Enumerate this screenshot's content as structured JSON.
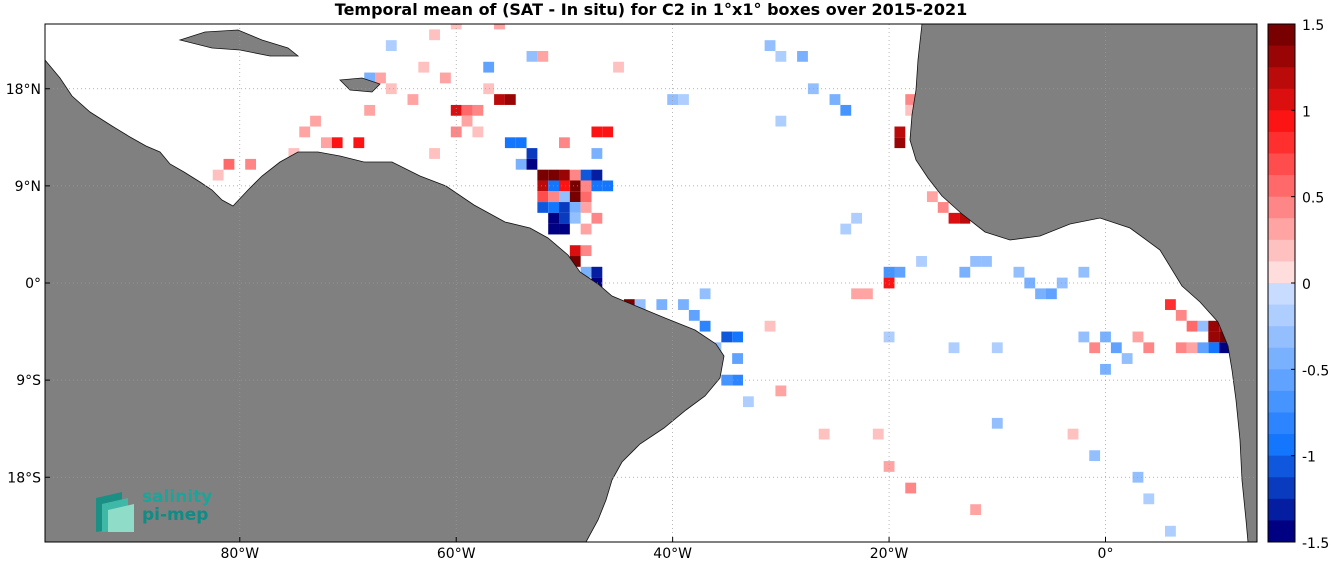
{
  "title": "Temporal mean of (SAT - In situ) for C2 in 1°x1° boxes over 2015-2021",
  "map": {
    "lon_range": [
      -98,
      14
    ],
    "lat_range": [
      -24,
      24
    ],
    "x_ticks": [
      {
        "value": -80,
        "label": "80°W"
      },
      {
        "value": -60,
        "label": "60°W"
      },
      {
        "value": -40,
        "label": "40°W"
      },
      {
        "value": -20,
        "label": "20°W"
      },
      {
        "value": 0,
        "label": "0°"
      }
    ],
    "y_ticks": [
      {
        "value": 18,
        "label": "18°N"
      },
      {
        "value": 9,
        "label": "9°N"
      },
      {
        "value": 0,
        "label": "0°"
      },
      {
        "value": -9,
        "label": "9°S"
      },
      {
        "value": -18,
        "label": "18°S"
      }
    ],
    "grid": "dotted",
    "land_color": "#808080",
    "ocean_color": "#ffffff"
  },
  "colorbar": {
    "min": -1.5,
    "max": 1.5,
    "ticks": [
      {
        "value": 1.5,
        "label": "1.5"
      },
      {
        "value": 1,
        "label": "1"
      },
      {
        "value": 0.5,
        "label": "0.5"
      },
      {
        "value": 0,
        "label": "0"
      },
      {
        "value": -0.5,
        "label": "-0.5"
      },
      {
        "value": -1,
        "label": "-1"
      },
      {
        "value": -1.5,
        "label": "-1.5"
      }
    ],
    "steps": 24,
    "colormap": "blue-white-red"
  },
  "logo": {
    "line1": "salinity",
    "line2": "pi-mep"
  },
  "chart_data": {
    "type": "heatmap",
    "title": "Temporal mean of (SAT - In situ) for C2 in 1°x1° boxes over 2015-2021",
    "box_size_deg": 1,
    "cells": [
      {
        "lon": -60,
        "lat": 16,
        "v": 1.1
      },
      {
        "lon": -59,
        "lat": 16,
        "v": 0.6
      },
      {
        "lon": -58,
        "lat": 16,
        "v": 0.4
      },
      {
        "lon": -59,
        "lat": 15,
        "v": 0.3
      },
      {
        "lon": -60,
        "lat": 14,
        "v": 0.4
      },
      {
        "lon": -58,
        "lat": 14,
        "v": 0.2
      },
      {
        "lon": -56,
        "lat": 17,
        "v": 1.2
      },
      {
        "lon": -55,
        "lat": 17,
        "v": 1.3
      },
      {
        "lon": -57,
        "lat": 18,
        "v": 0.2
      },
      {
        "lon": -57,
        "lat": 20,
        "v": -0.6
      },
      {
        "lon": -71,
        "lat": 13,
        "v": 1.0
      },
      {
        "lon": -69,
        "lat": 13,
        "v": 1.0
      },
      {
        "lon": -72,
        "lat": 13,
        "v": 0.3
      },
      {
        "lon": -73,
        "lat": 15,
        "v": 0.3
      },
      {
        "lon": -81,
        "lat": 11,
        "v": 0.6
      },
      {
        "lon": -79,
        "lat": 11,
        "v": 0.4
      },
      {
        "lon": -82,
        "lat": 10,
        "v": 0.2
      },
      {
        "lon": -68,
        "lat": 16,
        "v": 0.3
      },
      {
        "lon": -66,
        "lat": 18,
        "v": 0.2
      },
      {
        "lon": -67,
        "lat": 19,
        "v": 0.3
      },
      {
        "lon": -68,
        "lat": 19,
        "v": -0.5
      },
      {
        "lon": -55,
        "lat": 13,
        "v": -0.9
      },
      {
        "lon": -54,
        "lat": 13,
        "v": -1.0
      },
      {
        "lon": -53,
        "lat": 12,
        "v": -1.2
      },
      {
        "lon": -54,
        "lat": 11,
        "v": -0.4
      },
      {
        "lon": -53,
        "lat": 11,
        "v": -1.4
      },
      {
        "lon": -52,
        "lat": 10,
        "v": 1.5
      },
      {
        "lon": -51,
        "lat": 10,
        "v": 1.4
      },
      {
        "lon": -50,
        "lat": 10,
        "v": 1.3
      },
      {
        "lon": -49,
        "lat": 10,
        "v": 0.4
      },
      {
        "lon": -48,
        "lat": 10,
        "v": -1.1
      },
      {
        "lon": -47,
        "lat": 10,
        "v": -1.3
      },
      {
        "lon": -52,
        "lat": 9,
        "v": 1.2
      },
      {
        "lon": -51,
        "lat": 9,
        "v": -0.9
      },
      {
        "lon": -50,
        "lat": 9,
        "v": 0.9
      },
      {
        "lon": -49,
        "lat": 9,
        "v": 1.5
      },
      {
        "lon": -48,
        "lat": 9,
        "v": 0.5
      },
      {
        "lon": -47,
        "lat": 9,
        "v": -0.9
      },
      {
        "lon": -46,
        "lat": 9,
        "v": -1.0
      },
      {
        "lon": -52,
        "lat": 8,
        "v": 0.7
      },
      {
        "lon": -51,
        "lat": 8,
        "v": 0.5
      },
      {
        "lon": -50,
        "lat": 8,
        "v": -0.3
      },
      {
        "lon": -49,
        "lat": 8,
        "v": 1.5
      },
      {
        "lon": -48,
        "lat": 8,
        "v": 0.6
      },
      {
        "lon": -52,
        "lat": 7,
        "v": -1.1
      },
      {
        "lon": -51,
        "lat": 7,
        "v": -1.0
      },
      {
        "lon": -50,
        "lat": 7,
        "v": -1.2
      },
      {
        "lon": -49,
        "lat": 7,
        "v": -0.4
      },
      {
        "lon": -48,
        "lat": 7,
        "v": 0.3
      },
      {
        "lon": -51,
        "lat": 6,
        "v": -1.4
      },
      {
        "lon": -50,
        "lat": 6,
        "v": -1.2
      },
      {
        "lon": -49,
        "lat": 6,
        "v": -0.3
      },
      {
        "lon": -47,
        "lat": 6,
        "v": 0.4
      },
      {
        "lon": -51,
        "lat": 5,
        "v": -1.5
      },
      {
        "lon": -50,
        "lat": 5,
        "v": -1.4
      },
      {
        "lon": -48,
        "lat": 5,
        "v": 0.3
      },
      {
        "lon": -49,
        "lat": 3,
        "v": 1.1
      },
      {
        "lon": -48,
        "lat": 3,
        "v": 0.4
      },
      {
        "lon": -49,
        "lat": 2,
        "v": 1.5
      },
      {
        "lon": -48,
        "lat": 1,
        "v": -0.5
      },
      {
        "lon": -47,
        "lat": 1,
        "v": -1.3
      },
      {
        "lon": -47,
        "lat": 0,
        "v": -1.4
      },
      {
        "lon": -46,
        "lat": 14,
        "v": 1.0
      },
      {
        "lon": -47,
        "lat": 14,
        "v": 0.9
      },
      {
        "lon": -50,
        "lat": 13,
        "v": 0.5
      },
      {
        "lon": -47,
        "lat": 12,
        "v": -0.4
      },
      {
        "lon": -44,
        "lat": -2,
        "v": 1.5
      },
      {
        "lon": -43,
        "lat": -2,
        "v": -0.3
      },
      {
        "lon": -41,
        "lat": -2,
        "v": -0.4
      },
      {
        "lon": -38,
        "lat": -3,
        "v": -0.6
      },
      {
        "lon": -37,
        "lat": -4,
        "v": -0.8
      },
      {
        "lon": -35,
        "lat": -5,
        "v": -1.1
      },
      {
        "lon": -34,
        "lat": -5,
        "v": -0.9
      },
      {
        "lon": -34,
        "lat": -7,
        "v": -0.6
      },
      {
        "lon": -35,
        "lat": -9,
        "v": -0.7
      },
      {
        "lon": -34,
        "lat": -9,
        "v": -0.8
      },
      {
        "lon": -31,
        "lat": -4,
        "v": 0.2
      },
      {
        "lon": -19,
        "lat": 14,
        "v": 1.2
      },
      {
        "lon": -19,
        "lat": 13,
        "v": 1.3
      },
      {
        "lon": -18,
        "lat": 17,
        "v": 0.4
      },
      {
        "lon": -17,
        "lat": 17,
        "v": 0.3
      },
      {
        "lon": -18,
        "lat": 16,
        "v": 0.2
      },
      {
        "lon": -14,
        "lat": 6,
        "v": 1.1
      },
      {
        "lon": -13,
        "lat": 6,
        "v": 1.2
      },
      {
        "lon": -15,
        "lat": 7,
        "v": 0.5
      },
      {
        "lon": -16,
        "lat": 8,
        "v": 0.3
      },
      {
        "lon": -20,
        "lat": 1,
        "v": -0.7
      },
      {
        "lon": -19,
        "lat": 1,
        "v": -0.6
      },
      {
        "lon": -20,
        "lat": 0,
        "v": 0.9
      },
      {
        "lon": -23,
        "lat": -1,
        "v": 0.3
      },
      {
        "lon": -22,
        "lat": -1,
        "v": 0.3
      },
      {
        "lon": -24,
        "lat": 16,
        "v": -0.7
      },
      {
        "lon": -25,
        "lat": 17,
        "v": -0.4
      },
      {
        "lon": -27,
        "lat": 18,
        "v": -0.3
      },
      {
        "lon": -11,
        "lat": 2,
        "v": -0.3
      },
      {
        "lon": -12,
        "lat": 2,
        "v": -0.3
      },
      {
        "lon": -13,
        "lat": 1,
        "v": -0.4
      },
      {
        "lon": -8,
        "lat": 1,
        "v": -0.3
      },
      {
        "lon": -7,
        "lat": 0,
        "v": -0.4
      },
      {
        "lon": -6,
        "lat": -1,
        "v": -0.4
      },
      {
        "lon": -5,
        "lat": -1,
        "v": -0.6
      },
      {
        "lon": -4,
        "lat": 0,
        "v": -0.3
      },
      {
        "lon": -2,
        "lat": 1,
        "v": -0.3
      },
      {
        "lon": 6,
        "lat": -2,
        "v": 0.8
      },
      {
        "lon": 7,
        "lat": -3,
        "v": 0.4
      },
      {
        "lon": 8,
        "lat": -4,
        "v": 0.6
      },
      {
        "lon": 9,
        "lat": -4,
        "v": -0.3
      },
      {
        "lon": 10,
        "lat": -4,
        "v": 1.3
      },
      {
        "lon": 11,
        "lat": -4,
        "v": 1.2
      },
      {
        "lon": 12,
        "lat": -5,
        "v": 1.1
      },
      {
        "lon": 10,
        "lat": -5,
        "v": 1.3
      },
      {
        "lon": 11,
        "lat": -5,
        "v": 1.4
      },
      {
        "lon": 11,
        "lat": -6,
        "v": -1.4
      },
      {
        "lon": 10,
        "lat": -6,
        "v": -0.9
      },
      {
        "lon": 9,
        "lat": -6,
        "v": -0.6
      },
      {
        "lon": 8,
        "lat": -6,
        "v": 0.3
      },
      {
        "lon": 7,
        "lat": -6,
        "v": 0.4
      },
      {
        "lon": 4,
        "lat": -6,
        "v": 0.5
      },
      {
        "lon": 3,
        "lat": -5,
        "v": 0.3
      },
      {
        "lon": 1,
        "lat": -6,
        "v": -0.6
      },
      {
        "lon": 0,
        "lat": -5,
        "v": -0.5
      },
      {
        "lon": -1,
        "lat": -6,
        "v": 0.4
      },
      {
        "lon": -2,
        "lat": -5,
        "v": -0.3
      },
      {
        "lon": 2,
        "lat": -7,
        "v": -0.3
      },
      {
        "lon": 0,
        "lat": -8,
        "v": -0.4
      },
      {
        "lon": -10,
        "lat": -6,
        "v": -0.2
      },
      {
        "lon": -14,
        "lat": -6,
        "v": -0.2
      },
      {
        "lon": -20,
        "lat": -5,
        "v": -0.2
      },
      {
        "lon": -10,
        "lat": -13,
        "v": -0.3
      },
      {
        "lon": -3,
        "lat": -14,
        "v": 0.2
      },
      {
        "lon": -1,
        "lat": -16,
        "v": -0.3
      },
      {
        "lon": 3,
        "lat": -18,
        "v": -0.3
      },
      {
        "lon": 4,
        "lat": -20,
        "v": -0.2
      },
      {
        "lon": 6,
        "lat": -23,
        "v": -0.2
      },
      {
        "lon": -20,
        "lat": -17,
        "v": 0.3
      },
      {
        "lon": -18,
        "lat": -19,
        "v": 0.4
      },
      {
        "lon": -12,
        "lat": -21,
        "v": 0.3
      },
      {
        "lon": -26,
        "lat": -14,
        "v": 0.2
      },
      {
        "lon": -21,
        "lat": -14,
        "v": 0.2
      },
      {
        "lon": -33,
        "lat": -11,
        "v": -0.2
      },
      {
        "lon": -30,
        "lat": -10,
        "v": 0.3
      },
      {
        "lon": -40,
        "lat": 17,
        "v": -0.3
      },
      {
        "lon": -39,
        "lat": 17,
        "v": -0.2
      },
      {
        "lon": -45,
        "lat": 20,
        "v": 0.2
      },
      {
        "lon": -53,
        "lat": 21,
        "v": -0.3
      },
      {
        "lon": -52,
        "lat": 21,
        "v": 0.3
      },
      {
        "lon": -62,
        "lat": 23,
        "v": 0.2
      },
      {
        "lon": -66,
        "lat": 22,
        "v": -0.2
      },
      {
        "lon": -56,
        "lat": 24,
        "v": 0.3
      },
      {
        "lon": -60,
        "lat": 24,
        "v": 0.2
      },
      {
        "lon": -31,
        "lat": 22,
        "v": -0.3
      },
      {
        "lon": -30,
        "lat": 21,
        "v": -0.2
      },
      {
        "lon": -28,
        "lat": 21,
        "v": -0.4
      },
      {
        "lon": -8,
        "lat": 7,
        "v": 0.2
      },
      {
        "lon": -17,
        "lat": 2,
        "v": -0.2
      },
      {
        "lon": -24,
        "lat": 5,
        "v": -0.2
      },
      {
        "lon": -23,
        "lat": 6,
        "v": -0.2
      },
      {
        "lon": -30,
        "lat": 15,
        "v": -0.2
      },
      {
        "lon": -63,
        "lat": 20,
        "v": 0.2
      },
      {
        "lon": -61,
        "lat": 19,
        "v": 0.3
      },
      {
        "lon": -64,
        "lat": 17,
        "v": 0.3
      },
      {
        "lon": -62,
        "lat": 12,
        "v": 0.2
      },
      {
        "lon": -75,
        "lat": 12,
        "v": 0.2
      },
      {
        "lon": -74,
        "lat": 14,
        "v": 0.3
      },
      {
        "lon": -36,
        "lat": -6,
        "v": -0.3
      },
      {
        "lon": -37,
        "lat": -1,
        "v": -0.3
      },
      {
        "lon": -39,
        "lat": -2,
        "v": -0.4
      }
    ]
  }
}
